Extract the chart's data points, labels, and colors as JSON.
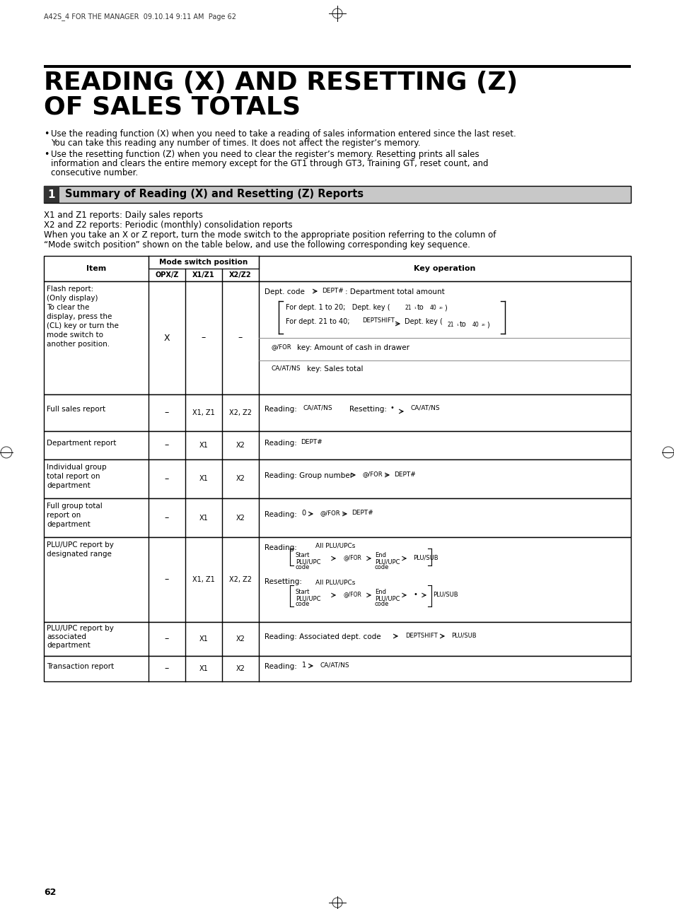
{
  "page_header": "A42S_4 FOR THE MANAGER  09.10.14 9:11 AM  Page 62",
  "main_title_line1": "READING (X) AND RESETTING (Z)",
  "main_title_line2": "OF SALES TOTALS",
  "bullet1_line1": "Use the reading function (X) when you need to take a reading of sales information entered since the last reset.",
  "bullet1_line2": "You can take this reading any number of times. It does not affect the register’s memory.",
  "bullet2_line1": "Use the resetting function (Z) when you need to clear the register’s memory. Resetting prints all sales",
  "bullet2_line2": "information and clears the entire memory except for the GT1 through GT3, Training GT, reset count, and",
  "bullet2_line3": "consecutive number.",
  "section_num": "1",
  "section_title": "Summary of Reading (X) and Resetting (Z) Reports",
  "para1": "X1 and Z1 reports: Daily sales reports",
  "para2": "X2 and Z2 reports: Periodic (monthly) consolidation reports",
  "para3": "When you take an X or Z report, turn the mode switch to the appropriate position referring to the column of",
  "para4": "“Mode switch position” shown on the table below, and use the following corresponding key sequence.",
  "page_num": "62",
  "bg_color": "#ffffff",
  "text_color": "#000000",
  "title_color": "#000000",
  "section_bg": "#c0c0c0",
  "table_border": "#000000"
}
